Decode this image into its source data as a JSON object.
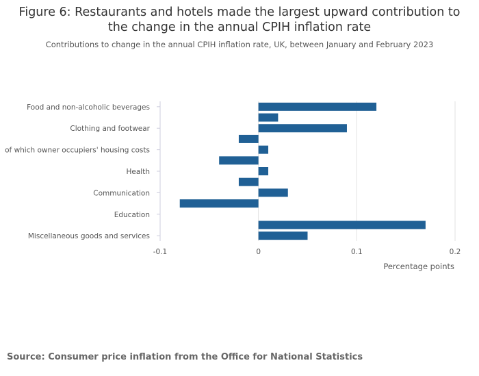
{
  "chart_data": {
    "type": "bar",
    "orientation": "horizontal",
    "title": "Figure 6: Restaurants and hotels made the largest upward contribution to the change in the annual CPIH inflation rate",
    "title_lines": [
      "Figure 6: Restaurants and hotels made the largest upward contribution to",
      "the change in the annual CPIH inflation rate"
    ],
    "subtitle": "Contributions to change in the annual CPIH inflation rate, UK, between January and February 2023",
    "categories": [
      "Food and non-alcoholic beverages",
      "",
      "Clothing and footwear",
      "",
      "of which owner occupiers' housing costs",
      "",
      "Health",
      "",
      "Communication",
      "",
      "Education",
      "",
      "Miscellaneous goods and services"
    ],
    "values": [
      0.12,
      0.02,
      0.09,
      -0.02,
      0.01,
      -0.04,
      0.01,
      -0.02,
      0.03,
      -0.08,
      0,
      0.17,
      0.05
    ],
    "xlabel": "Percentage points",
    "xlim": [
      -0.1,
      0.2
    ],
    "xticks": [
      -0.1,
      0,
      0.1,
      0.2
    ],
    "xtick_labels": [
      "-0.1",
      "0",
      "0.1",
      "0.2"
    ],
    "grid": true,
    "color": "#206095"
  },
  "source": "Source: Consumer price inflation from the Office for National Statistics"
}
